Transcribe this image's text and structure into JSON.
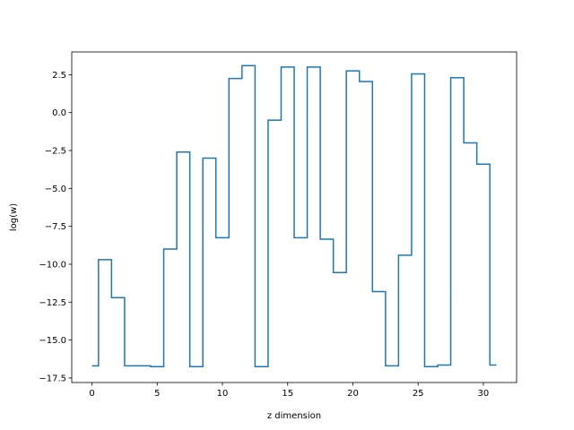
{
  "chart_data": {
    "type": "line",
    "drawstyle": "steps-mid",
    "xlabel": "z dimension",
    "ylabel": "log(w)",
    "xlim": [
      -1.55,
      32.55
    ],
    "ylim": [
      -17.8,
      4.0
    ],
    "xticks": [
      0,
      5,
      10,
      15,
      20,
      25,
      30
    ],
    "yticks": [
      -17.5,
      -15.0,
      -12.5,
      -10.0,
      -7.5,
      -5.0,
      -2.5,
      0.0,
      2.5
    ],
    "xtick_labels": [
      "0",
      "5",
      "10",
      "15",
      "20",
      "25",
      "30"
    ],
    "ytick_labels": [
      "−17.5",
      "−15.0",
      "−12.5",
      "−10.0",
      "−7.5",
      "−5.0",
      "−2.5",
      "0.0",
      "2.5"
    ],
    "grid": false,
    "color": "#1f77b4",
    "series": [
      {
        "x": [
          0,
          1,
          2,
          3,
          4,
          5,
          6,
          7,
          8,
          9,
          10,
          11,
          12,
          13,
          14,
          15,
          16,
          17,
          18,
          19,
          20,
          21,
          22,
          23,
          24,
          25,
          26,
          27,
          28,
          29,
          30,
          31
        ],
        "values": [
          -16.7,
          -9.7,
          -12.2,
          -16.7,
          -16.7,
          -16.75,
          -9.0,
          -2.6,
          -16.75,
          -3.0,
          -8.25,
          2.25,
          3.1,
          -16.75,
          -0.5,
          3.0,
          -8.25,
          3.0,
          -8.35,
          -10.55,
          2.75,
          2.05,
          -11.8,
          -16.7,
          -9.4,
          2.55,
          -16.75,
          -16.65,
          2.3,
          -2.0,
          -3.4,
          -16.65
        ]
      }
    ]
  }
}
